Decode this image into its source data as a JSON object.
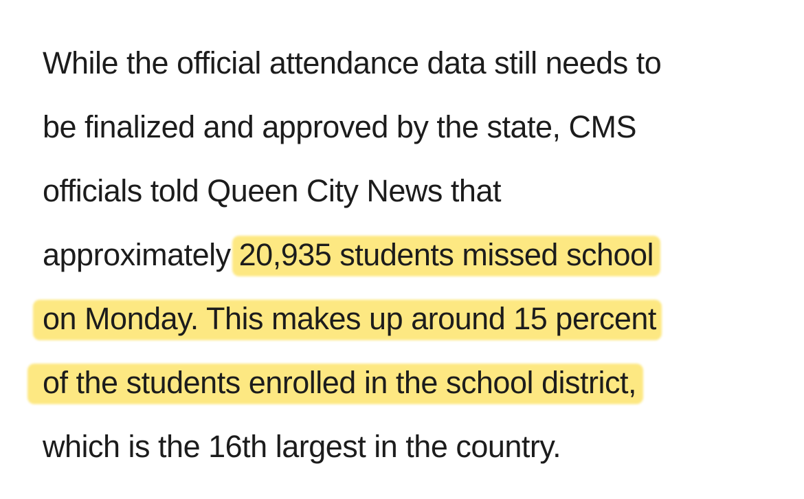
{
  "paragraph": {
    "line1": "While the official attendance data still needs to",
    "line2": "be finalized and approved by the state, CMS",
    "line3": "officials told Queen City News that",
    "line4_plain": "approximately",
    "line4_highlight": "20,935 students missed school",
    "line5_highlight": "on Monday. This makes up around 15 percent",
    "line6_highlight": "of the students enrolled in the school district,",
    "line7": "which is the 16th largest in the country."
  },
  "highlight_color": "#fde882",
  "text_color": "#1c1c1c"
}
